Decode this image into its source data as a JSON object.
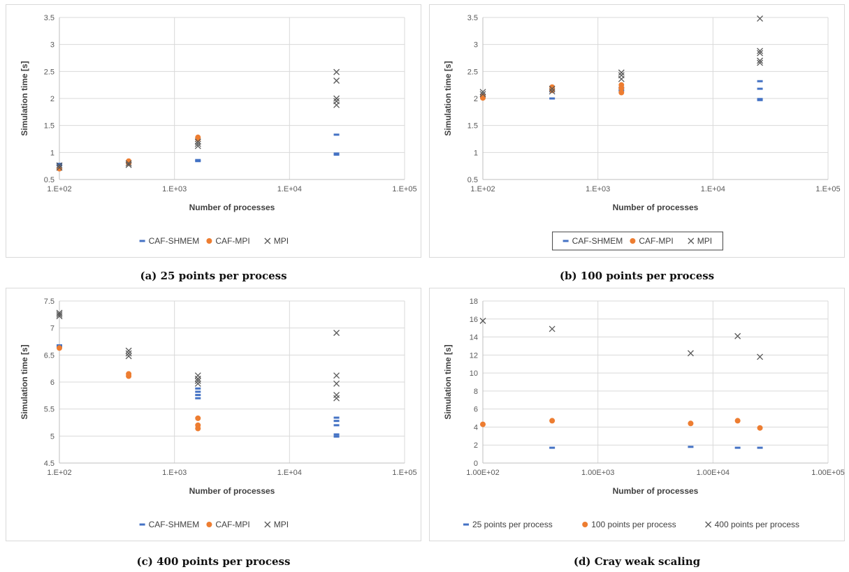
{
  "colors": {
    "shmem": "#4472C4",
    "mpi_caf": "#ED7D31",
    "mpi": "#595959",
    "grid": "#d9d9d9"
  },
  "chart_data": [
    {
      "type": "scatter",
      "caption": "(a) 25 points per process",
      "xlabel": "Number of processes",
      "ylabel": "Simulation time [s]",
      "xscale": "log",
      "xlim": [
        100,
        100000
      ],
      "ylim": [
        0.5,
        3.5
      ],
      "ystep": 0.5,
      "xticks": [
        "1.E+02",
        "1.E+03",
        "1.E+04",
        "1.E+05"
      ],
      "yticks": [
        "0.5",
        "1",
        "1.5",
        "2",
        "2.5",
        "3",
        "3.5"
      ],
      "grid": true,
      "legend_box": false,
      "series": [
        {
          "name": "CAF-SHMEM",
          "marker": "dash",
          "points": [
            [
              100,
              0.79
            ],
            [
              100,
              0.76
            ],
            [
              400,
              0.8
            ],
            [
              1600,
              0.86
            ],
            [
              1600,
              0.84
            ],
            [
              25600,
              1.33
            ],
            [
              25600,
              0.98
            ],
            [
              25600,
              0.96
            ]
          ]
        },
        {
          "name": "CAF-MPI",
          "marker": "circle",
          "points": [
            [
              100,
              0.7
            ],
            [
              400,
              0.84
            ],
            [
              400,
              0.8
            ],
            [
              1600,
              1.28
            ],
            [
              1600,
              1.25
            ]
          ]
        },
        {
          "name": "MPI",
          "marker": "x",
          "points": [
            [
              100,
              0.76
            ],
            [
              100,
              0.72
            ],
            [
              400,
              0.8
            ],
            [
              400,
              0.77
            ],
            [
              1600,
              1.2
            ],
            [
              1600,
              1.16
            ],
            [
              1600,
              1.12
            ],
            [
              25600,
              2.49
            ],
            [
              25600,
              2.33
            ],
            [
              25600,
              2.0
            ],
            [
              25600,
              1.95
            ],
            [
              25600,
              1.88
            ]
          ]
        }
      ]
    },
    {
      "type": "scatter",
      "caption": "(b) 100 points per process",
      "xlabel": "Number of processes",
      "ylabel": "Simulation time [s]",
      "xscale": "log",
      "xlim": [
        100,
        100000
      ],
      "ylim": [
        0.5,
        3.5
      ],
      "ystep": 0.5,
      "xticks": [
        "1.E+02",
        "1.E+03",
        "1.E+04",
        "1.E+05"
      ],
      "yticks": [
        "0.5",
        "1",
        "1.5",
        "2",
        "2.5",
        "3",
        "3.5"
      ],
      "grid": true,
      "legend_box": true,
      "series": [
        {
          "name": "CAF-SHMEM",
          "marker": "dash",
          "points": [
            [
              100,
              2.07
            ],
            [
              100,
              2.03
            ],
            [
              400,
              2.13
            ],
            [
              400,
              2.0
            ],
            [
              1600,
              2.2
            ],
            [
              1600,
              2.15
            ],
            [
              25600,
              2.32
            ],
            [
              25600,
              2.18
            ],
            [
              25600,
              1.99
            ],
            [
              25600,
              1.97
            ]
          ]
        },
        {
          "name": "CAF-MPI",
          "marker": "circle",
          "points": [
            [
              100,
              2.01
            ],
            [
              100,
              2.04
            ],
            [
              400,
              2.21
            ],
            [
              400,
              2.15
            ],
            [
              1600,
              2.25
            ],
            [
              1600,
              2.19
            ],
            [
              1600,
              2.11
            ]
          ]
        },
        {
          "name": "MPI",
          "marker": "x",
          "points": [
            [
              100,
              2.12
            ],
            [
              100,
              2.08
            ],
            [
              400,
              2.18
            ],
            [
              400,
              2.13
            ],
            [
              1600,
              2.48
            ],
            [
              1600,
              2.43
            ],
            [
              1600,
              2.36
            ],
            [
              25600,
              3.48
            ],
            [
              25600,
              2.88
            ],
            [
              25600,
              2.84
            ],
            [
              25600,
              2.7
            ],
            [
              25600,
              2.66
            ]
          ]
        }
      ]
    },
    {
      "type": "scatter",
      "caption": "(c) 400 points per process",
      "xlabel": "Number of processes",
      "ylabel": "Simulation time [s]",
      "xscale": "log",
      "xlim": [
        100,
        100000
      ],
      "ylim": [
        4.5,
        7.5
      ],
      "ystep": 0.5,
      "xticks": [
        "1.E+02",
        "1.E+03",
        "1.E+04",
        "1.E+05"
      ],
      "yticks": [
        "4.5",
        "5",
        "5.5",
        "6",
        "6.5",
        "7",
        "7.5"
      ],
      "grid": true,
      "legend_box": false,
      "series": [
        {
          "name": "CAF-SHMEM",
          "marker": "dash",
          "points": [
            [
              100,
              6.68
            ],
            [
              100,
              6.65
            ],
            [
              1600,
              5.88
            ],
            [
              1600,
              5.82
            ],
            [
              1600,
              5.76
            ],
            [
              1600,
              5.7
            ],
            [
              25600,
              5.34
            ],
            [
              25600,
              5.28
            ],
            [
              25600,
              5.2
            ],
            [
              25600,
              5.03
            ],
            [
              25600,
              4.99
            ]
          ]
        },
        {
          "name": "CAF-MPI",
          "marker": "circle",
          "points": [
            [
              100,
              6.63
            ],
            [
              400,
              6.15
            ],
            [
              400,
              6.11
            ],
            [
              1600,
              5.33
            ],
            [
              1600,
              5.2
            ],
            [
              1600,
              5.14
            ]
          ]
        },
        {
          "name": "MPI",
          "marker": "x",
          "points": [
            [
              100,
              7.28
            ],
            [
              100,
              7.25
            ],
            [
              100,
              7.22
            ],
            [
              400,
              6.58
            ],
            [
              400,
              6.53
            ],
            [
              400,
              6.48
            ],
            [
              1600,
              6.12
            ],
            [
              1600,
              6.06
            ],
            [
              1600,
              6.02
            ],
            [
              1600,
              5.97
            ],
            [
              25600,
              6.91
            ],
            [
              25600,
              6.12
            ],
            [
              25600,
              5.97
            ],
            [
              25600,
              5.76
            ],
            [
              25600,
              5.7
            ]
          ]
        }
      ]
    },
    {
      "type": "scatter",
      "caption": "(d) Cray weak scaling",
      "xlabel": "Number of processes",
      "ylabel": "Simulation time [s]",
      "xscale": "log",
      "xlim": [
        100,
        100000
      ],
      "ylim": [
        0,
        18
      ],
      "ystep": 2,
      "xticks": [
        "1.00E+02",
        "1.00E+03",
        "1.00E+04",
        "1.00E+05"
      ],
      "yticks": [
        "0",
        "2",
        "4",
        "6",
        "8",
        "10",
        "12",
        "14",
        "16",
        "18"
      ],
      "grid": true,
      "legend_box": false,
      "series": [
        {
          "name": "25 points per process",
          "marker": "dash",
          "points": [
            [
              400,
              1.7
            ],
            [
              6400,
              1.8
            ],
            [
              16384,
              1.7
            ],
            [
              25600,
              1.7
            ]
          ]
        },
        {
          "name": "100 points per process",
          "marker": "circle",
          "points": [
            [
              100,
              4.3
            ],
            [
              400,
              4.7
            ],
            [
              6400,
              4.4
            ],
            [
              16384,
              4.7
            ],
            [
              25600,
              3.9
            ]
          ]
        },
        {
          "name": "400 points per process",
          "marker": "x",
          "points": [
            [
              100,
              15.8
            ],
            [
              400,
              14.9
            ],
            [
              6400,
              12.2
            ],
            [
              16384,
              14.1
            ],
            [
              25600,
              11.8
            ]
          ]
        }
      ]
    }
  ]
}
